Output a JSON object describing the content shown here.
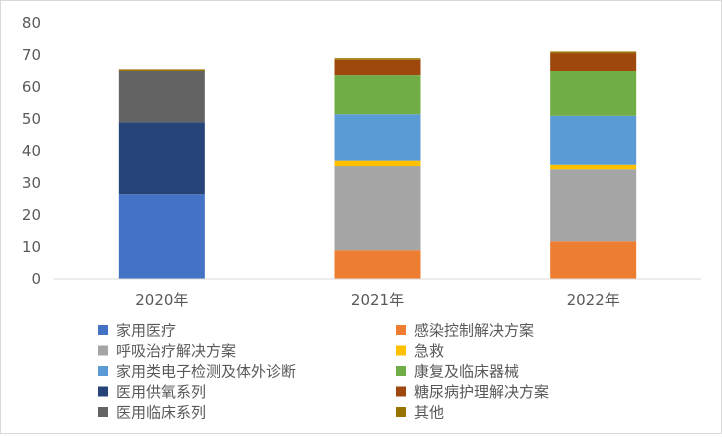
{
  "chart_data": {
    "type": "bar",
    "stacked": true,
    "categories": [
      "2020年",
      "2021年",
      "2022年"
    ],
    "ylim": [
      0,
      80
    ],
    "yticks": [
      0,
      10,
      20,
      30,
      40,
      50,
      60,
      70,
      80
    ],
    "grid": false,
    "legend_placement": "bottom",
    "series": [
      {
        "name": "家用医疗",
        "color": "#4472C4",
        "values": [
          26.5,
          0,
          0
        ]
      },
      {
        "name": "感染控制解决方案",
        "color": "#ED7D31",
        "values": [
          0,
          9.0,
          11.8
        ]
      },
      {
        "name": "呼吸治疗解决方案",
        "color": "#A5A5A5",
        "values": [
          0,
          26.3,
          22.5
        ]
      },
      {
        "name": "急救",
        "color": "#FFC000",
        "values": [
          0,
          1.7,
          1.4
        ]
      },
      {
        "name": "家用类电子检测及体外诊断",
        "color": "#5B9BD5",
        "values": [
          0,
          14.5,
          15.3
        ]
      },
      {
        "name": "康复及临床器械",
        "color": "#70AD47",
        "values": [
          0,
          12.2,
          14.0
        ]
      },
      {
        "name": "医用供氧系列",
        "color": "#264478",
        "values": [
          22.5,
          0,
          0
        ]
      },
      {
        "name": "糖尿病护理解决方案",
        "color": "#9E480E",
        "values": [
          0,
          4.8,
          5.6
        ]
      },
      {
        "name": "医用临床系列",
        "color": "#636363",
        "values": [
          16.0,
          0,
          0
        ]
      },
      {
        "name": "其他",
        "color": "#997300",
        "values": [
          0.5,
          0.5,
          0.5
        ]
      }
    ]
  }
}
